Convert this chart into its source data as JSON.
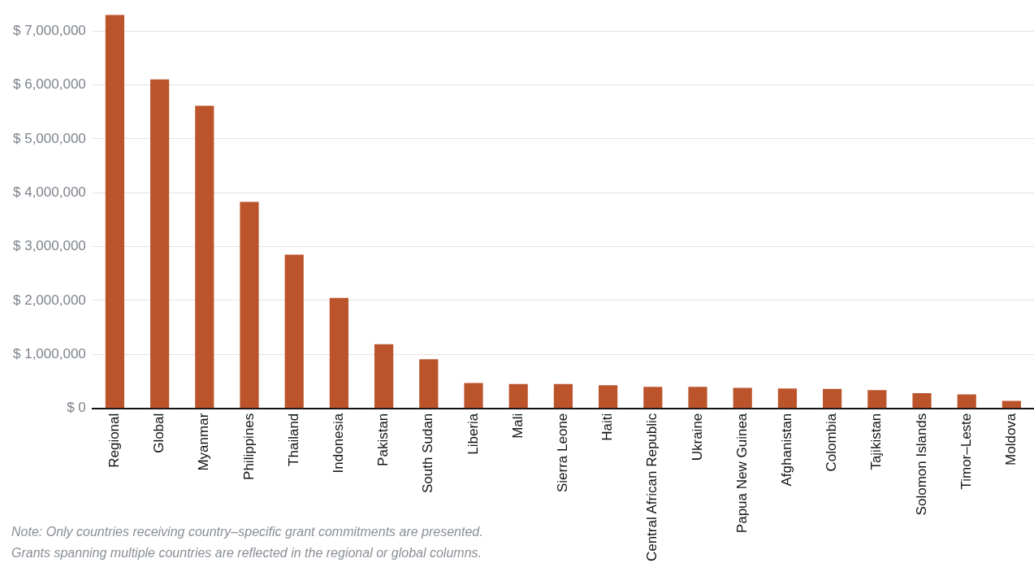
{
  "chart_data": {
    "type": "bar",
    "categories": [
      "Regional",
      "Global",
      "Myanmar",
      "Philippines",
      "Thailand",
      "Indonesia",
      "Pakistan",
      "South Sudan",
      "Liberia",
      "Mali",
      "Sierra Leone",
      "Haiti",
      "Central African Republic",
      "Ukraine",
      "Papua New Guinea",
      "Afghanistan",
      "Colombia",
      "Tajikistan",
      "Solomon Islands",
      "Timor–Leste",
      "Moldova"
    ],
    "values": [
      7300000,
      6100000,
      5610000,
      3830000,
      2850000,
      2050000,
      1190000,
      910000,
      470000,
      450000,
      450000,
      430000,
      400000,
      400000,
      380000,
      370000,
      360000,
      340000,
      280000,
      260000,
      140000
    ],
    "color": "#bb532b",
    "ylim": [
      0,
      7300000
    ],
    "yticks": [
      {
        "value": 0,
        "label": "$ 0"
      },
      {
        "value": 1000000,
        "label": "$ 1,000,000"
      },
      {
        "value": 2000000,
        "label": "$ 2,000,000"
      },
      {
        "value": 3000000,
        "label": "$ 3,000,000"
      },
      {
        "value": 4000000,
        "label": "$ 4,000,000"
      },
      {
        "value": 5000000,
        "label": "$ 5,000,000"
      },
      {
        "value": 6000000,
        "label": "$ 6,000,000"
      },
      {
        "value": 7000000,
        "label": "$ 7,000,000"
      }
    ],
    "grid": "y",
    "annotations": [
      "Note: Only countries receiving country–specific grant commitments are presented.",
      "Grants spanning multiple countries are reflected in the regional or global columns."
    ]
  }
}
